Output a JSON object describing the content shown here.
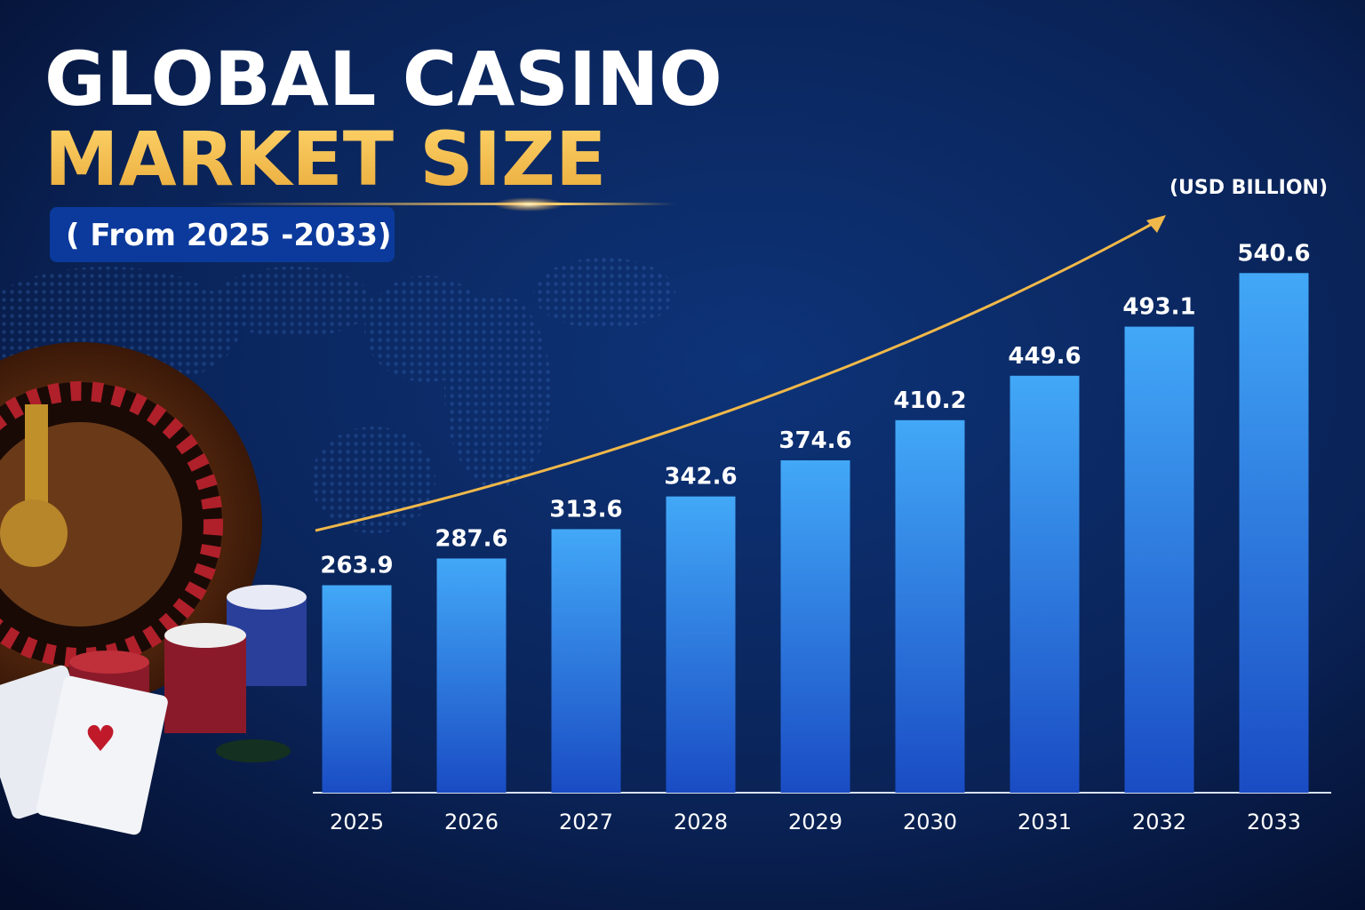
{
  "chart_data": {
    "type": "bar",
    "title": [
      "GLOBAL CASINO",
      "MARKET SIZE"
    ],
    "subtitle": "( From 2025 -2033)",
    "unit_label": "(USD BILLION)",
    "categories": [
      "2025",
      "2026",
      "2027",
      "2028",
      "2029",
      "2030",
      "2031",
      "2032",
      "2033"
    ],
    "values": [
      263.9,
      287.6,
      313.6,
      342.6,
      374.6,
      410.2,
      449.6,
      493.1,
      540.6
    ],
    "color": "#42a8f7",
    "ylim": [
      80,
      555
    ]
  }
}
